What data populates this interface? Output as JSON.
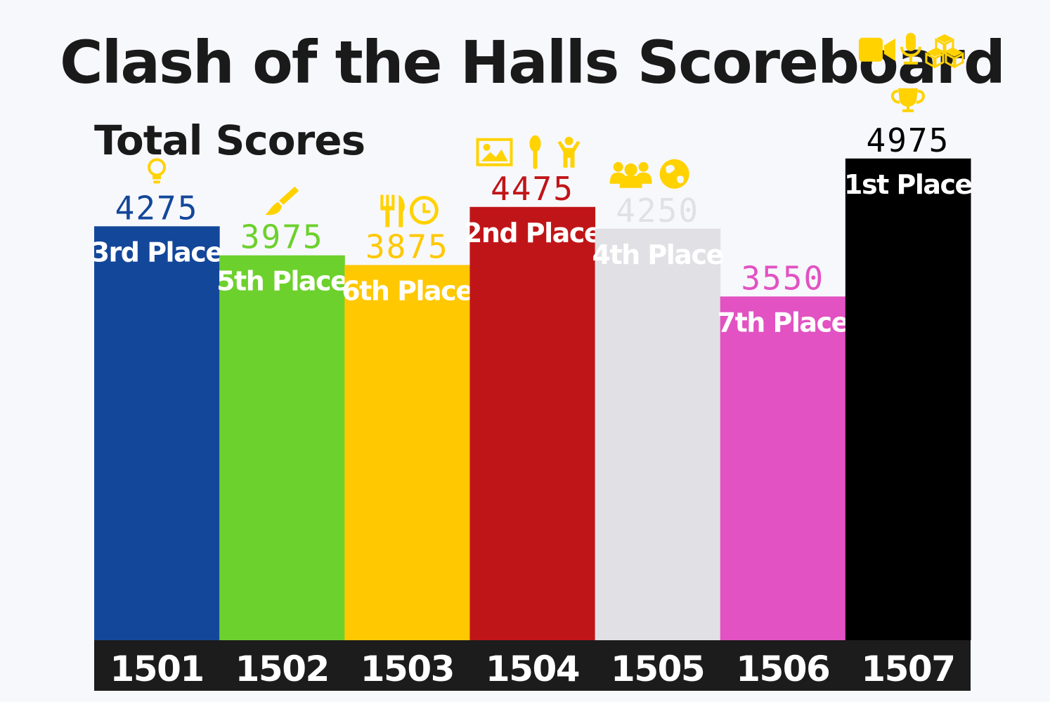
{
  "chart_data": {
    "type": "bar",
    "title": "Clash of the Halls Scoreboard",
    "subtitle": "Total Scores",
    "categories": [
      "1501",
      "1502",
      "1503",
      "1504",
      "1505",
      "1506",
      "1507"
    ],
    "values": [
      4275,
      3975,
      3875,
      4475,
      4250,
      3550,
      4975
    ],
    "places": [
      "3rd Place",
      "5th Place",
      "6th Place",
      "2nd Place",
      "4th Place",
      "7th Place",
      "1st Place"
    ],
    "colors": [
      "#13479a",
      "#6dd12d",
      "#ffc800",
      "#c01518",
      "#e1e0e5",
      "#e252c2",
      "#000000"
    ],
    "value_label_colors": [
      "#13479a",
      "#6dd12d",
      "#ffc800",
      "#c01518",
      "#e1e0e5",
      "#e252c2",
      "#000000"
    ],
    "place_label_colors": [
      "#ffffff",
      "#ffffff",
      "#ffffff",
      "#ffffff",
      "#ffffff",
      "#ffffff",
      "#ffffff"
    ],
    "icon_color": "#ffd200",
    "category_band_color": "#1c1c1c",
    "icons": [
      [
        "lightbulb-icon"
      ],
      [
        "paintbrush-icon"
      ],
      [
        "utensils-icon",
        "clock-icon"
      ],
      [
        "image-icon",
        "spoon-icon",
        "child-icon"
      ],
      [
        "users-icon",
        "globe-icon"
      ],
      [],
      [
        "video-camera-icon",
        "microphone-icon",
        "cubes-icon",
        "trophy-icon"
      ]
    ],
    "ylim": [
      0,
      5800
    ],
    "grid": false,
    "legend": "none"
  }
}
